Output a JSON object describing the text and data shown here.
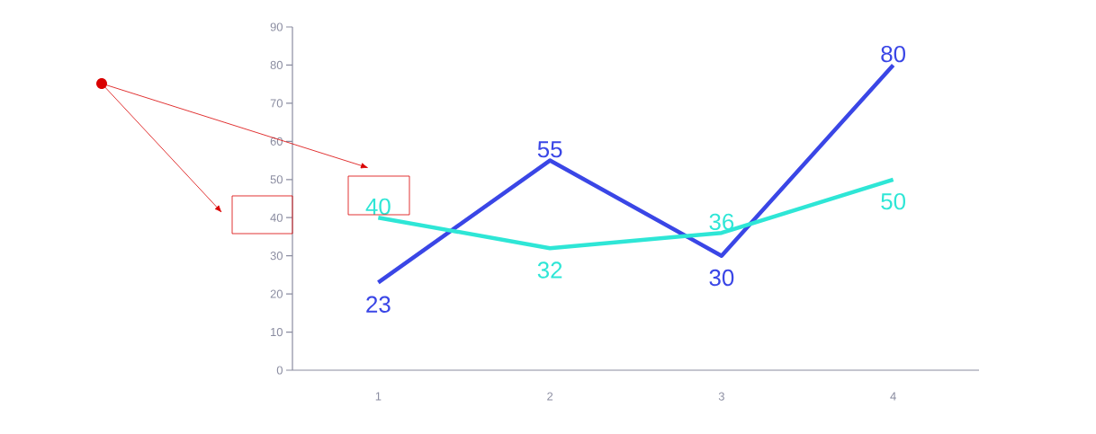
{
  "chart_data": {
    "type": "line",
    "categories": [
      "1",
      "2",
      "3",
      "4"
    ],
    "series": [
      {
        "color": "#3a46e6",
        "values": [
          23,
          55,
          30,
          80
        ]
      },
      {
        "color": "#2ee6d6",
        "values": [
          40,
          32,
          36,
          50
        ]
      }
    ],
    "ylim": [
      0,
      90
    ],
    "yticks": [
      0,
      10,
      20,
      30,
      40,
      50,
      60,
      70,
      80,
      90
    ],
    "grid": false,
    "marker": "none",
    "line_style": "solid",
    "data_labels": true
  }
}
